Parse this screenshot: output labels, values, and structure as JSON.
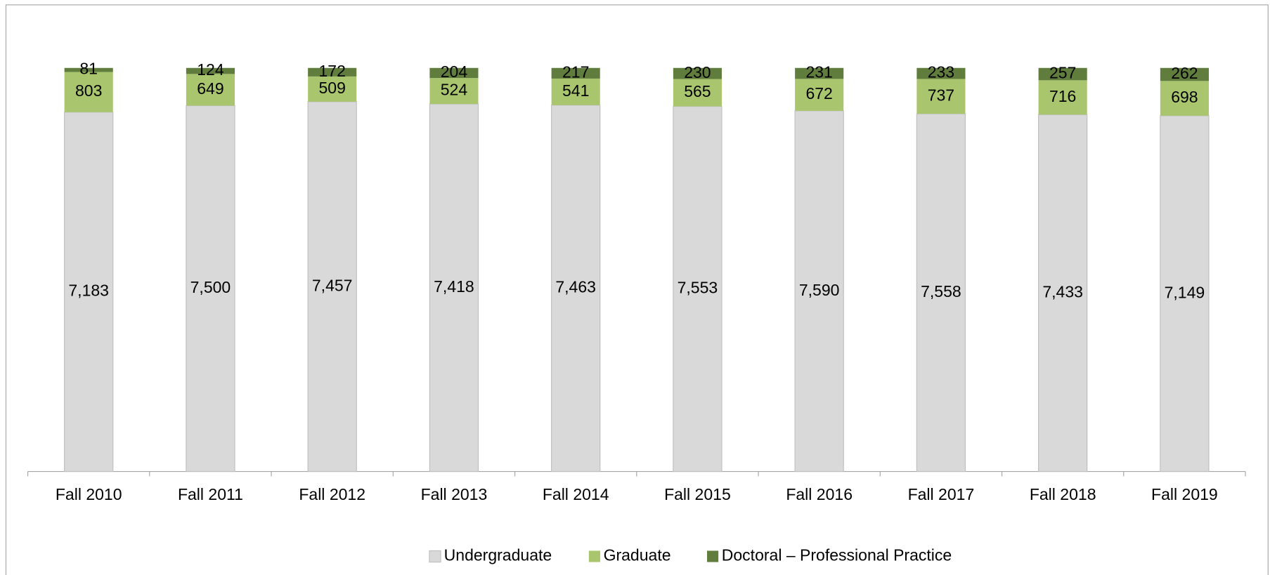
{
  "chart_data": {
    "type": "bar",
    "stacked": "percent",
    "categories": [
      "Fall 2010",
      "Fall 2011",
      "Fall 2012",
      "Fall 2013",
      "Fall 2014",
      "Fall 2015",
      "Fall 2016",
      "Fall 2017",
      "Fall 2018",
      "Fall 2019"
    ],
    "series": [
      {
        "name": "Undergraduate",
        "color": "#d9d9d9",
        "values": [
          7183,
          7500,
          7457,
          7418,
          7463,
          7553,
          7590,
          7558,
          7433,
          7149
        ],
        "value_labels": [
          "7,183",
          "7,500",
          "7,457",
          "7,418",
          "7,463",
          "7,553",
          "7,590",
          "7,558",
          "7,433",
          "7,149"
        ]
      },
      {
        "name": "Graduate",
        "color": "#a9c66f",
        "values": [
          803,
          649,
          509,
          524,
          541,
          565,
          672,
          737,
          716,
          698
        ]
      },
      {
        "name": "Doctoral – Professional Practice",
        "color": "#617d3e",
        "values": [
          81,
          124,
          172,
          204,
          217,
          230,
          231,
          233,
          257,
          262
        ]
      }
    ],
    "legend": "bottom"
  }
}
